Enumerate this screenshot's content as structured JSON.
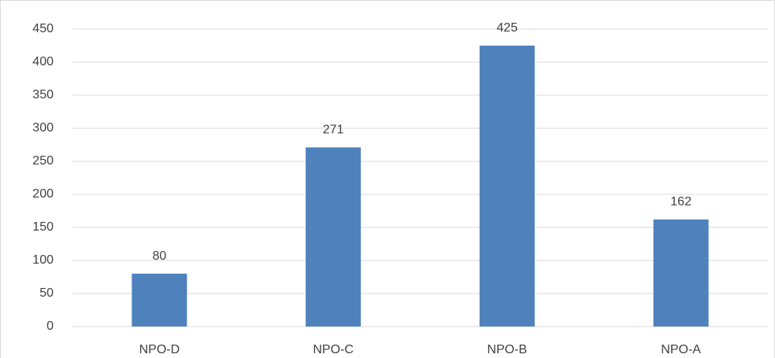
{
  "chart_data": {
    "type": "bar",
    "categories": [
      "NPO-D",
      "NPO-C",
      "NPO-B",
      "NPO-A"
    ],
    "values": [
      80,
      271,
      425,
      162
    ],
    "color": "#4f81bd",
    "ylim": [
      0,
      450
    ],
    "yticks": [
      0,
      50,
      100,
      150,
      200,
      250,
      300,
      350,
      400,
      450
    ],
    "grid": true
  }
}
